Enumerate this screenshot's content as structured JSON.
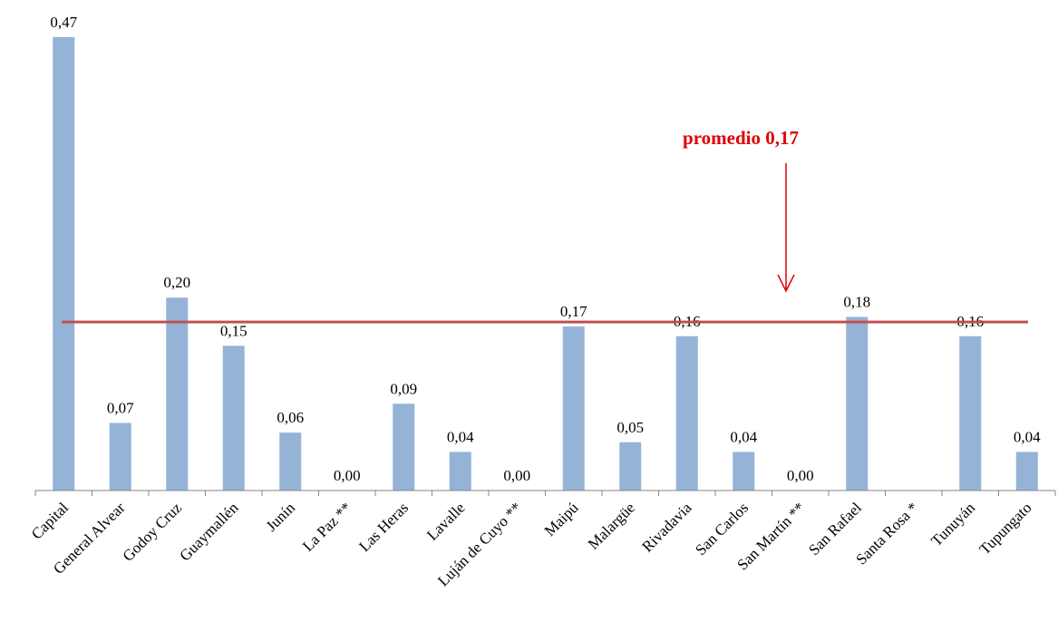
{
  "chart_data": {
    "type": "bar",
    "categories": [
      "Capital",
      "General Alvear",
      "Godoy Cruz",
      "Guaymallén",
      "Junín",
      "La Paz **",
      "Las Heras",
      "Lavalle",
      "Luján de Cuyo **",
      "Maipú",
      "Malargüe",
      "Rivadavia",
      "San Carlos",
      "San Martín **",
      "San Rafael",
      "Santa Rosa *",
      "Tunuyán",
      "Tupungato"
    ],
    "values": [
      0.47,
      0.07,
      0.2,
      0.15,
      0.06,
      0.0,
      0.09,
      0.04,
      0.0,
      0.17,
      0.05,
      0.16,
      0.04,
      0.0,
      0.18,
      null,
      0.16,
      0.04
    ],
    "value_labels": [
      "0,47",
      "0,07",
      "0,20",
      "0,15",
      "0,06",
      "0,00",
      "0,09",
      "0,04",
      "0,00",
      "0,17",
      "0,05",
      "0,16",
      "0,04",
      "0,00",
      "0,18",
      "",
      "0,16",
      "0,04"
    ],
    "reference_line": {
      "value": 0.17,
      "color": "#c0504d"
    },
    "annotation": {
      "text": "promedio 0,17",
      "color": "#e00000"
    },
    "bar_color": "#95b3d7",
    "ylim": [
      0,
      0.47
    ],
    "grid": false,
    "legend": "none"
  }
}
